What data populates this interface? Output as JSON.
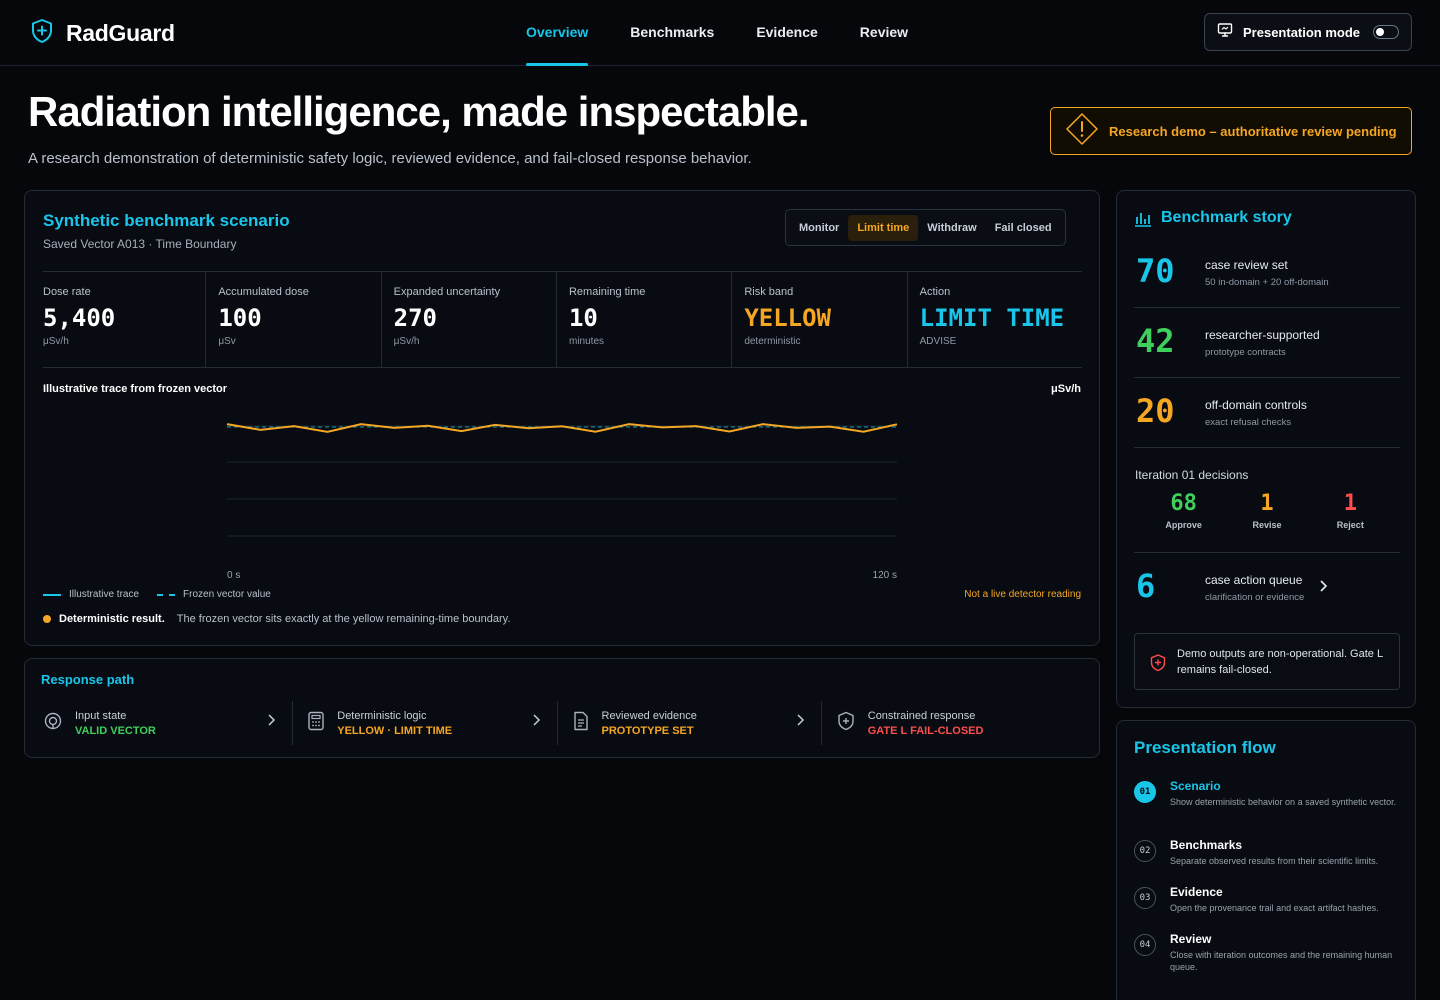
{
  "app": {
    "name": "RadGuard"
  },
  "nav": {
    "items": [
      {
        "label": "Overview",
        "active": true
      },
      {
        "label": "Benchmarks",
        "active": false
      },
      {
        "label": "Evidence",
        "active": false
      },
      {
        "label": "Review",
        "active": false
      }
    ],
    "presentation_mode": {
      "label": "Presentation mode",
      "enabled": false
    }
  },
  "hero": {
    "title": "Radiation intelligence, made inspectable.",
    "subtitle": "A research demonstration of deterministic safety logic, reviewed evidence, and fail-closed response behavior.",
    "banner": "Research demo – authoritative review pending"
  },
  "scenario": {
    "title": "Synthetic benchmark scenario",
    "subtitle": "Saved Vector A013 · Time Boundary",
    "modes": [
      {
        "label": "Monitor",
        "active": false
      },
      {
        "label": "Limit time",
        "active": true
      },
      {
        "label": "Withdraw",
        "active": false
      },
      {
        "label": "Fail closed",
        "active": false
      }
    ],
    "metrics": [
      {
        "label": "Dose rate",
        "value": "5,400",
        "unit": "μSv/h",
        "color": "#ffffff"
      },
      {
        "label": "Accumulated dose",
        "value": "100",
        "unit": "μSv",
        "color": "#ffffff"
      },
      {
        "label": "Expanded uncertainty",
        "value": "270",
        "unit": "μSv/h",
        "color": "#ffffff"
      },
      {
        "label": "Remaining time",
        "value": "10",
        "unit": "minutes",
        "color": "#ffffff"
      },
      {
        "label": "Risk band",
        "value": "YELLOW",
        "unit": "deterministic",
        "color": "#f5a623"
      },
      {
        "label": "Action",
        "value": "LIMIT TIME",
        "unit": "ADVISE",
        "color": "#19c6ea"
      }
    ],
    "trace": {
      "title": "Illustrative trace from frozen vector",
      "unit": "μSv/h",
      "x_start_label": "0 s",
      "x_end_label": "120 s",
      "legend_trace": "Illustrative trace",
      "legend_frozen": "Frozen vector value",
      "not_live": "Not a live detector reading",
      "result_label": "Deterministic result.",
      "result_text": "The frozen vector sits exactly at the yellow remaining-time boundary."
    }
  },
  "chart_data": {
    "type": "line",
    "title": "Illustrative trace from frozen vector",
    "ylabel": "μSv/h",
    "x_tick_labels": [
      "0 s",
      "120 s"
    ],
    "xlim": [
      0,
      120
    ],
    "grid": true,
    "legend_placement": "bottom-left",
    "series": [
      {
        "name": "Illustrative trace",
        "color": "#f5a623",
        "x": [
          0,
          6,
          12,
          18,
          24,
          30,
          36,
          42,
          48,
          54,
          60,
          66,
          72,
          78,
          84,
          90,
          96,
          102,
          108,
          114,
          120
        ],
        "values": [
          0.66,
          0.34,
          0.55,
          0.23,
          0.66,
          0.45,
          0.57,
          0.27,
          0.62,
          0.43,
          0.54,
          0.24,
          0.66,
          0.48,
          0.55,
          0.25,
          0.66,
          0.45,
          0.52,
          0.24,
          0.65
        ]
      },
      {
        "name": "Frozen vector value",
        "color": "#19c6ea",
        "style": "dashed",
        "x": [
          0,
          120
        ],
        "values": [
          0.5,
          0.5
        ]
      }
    ]
  },
  "response_path": {
    "title": "Response path",
    "steps": [
      {
        "label": "Input state",
        "value": "VALID VECTOR",
        "color": "#3fcf5c",
        "icon": "sensor-icon"
      },
      {
        "label": "Deterministic logic",
        "value": "YELLOW · LIMIT TIME",
        "color": "#f5a623",
        "icon": "calculator-icon"
      },
      {
        "label": "Reviewed evidence",
        "value": "PROTOTYPE SET",
        "color": "#f5a623",
        "icon": "document-icon"
      },
      {
        "label": "Constrained response",
        "value": "GATE L FAIL-CLOSED",
        "color": "#ff4d4d",
        "icon": "shield-icon"
      }
    ]
  },
  "story": {
    "title": "Benchmark story",
    "rows": [
      {
        "num": "70",
        "label": "case review set",
        "sub": "50 in-domain + 20 off-domain",
        "color": "#19c6ea"
      },
      {
        "num": "42",
        "label": "researcher-supported",
        "sub": "prototype contracts",
        "color": "#3fcf5c"
      },
      {
        "num": "20",
        "label": "off-domain controls",
        "sub": "exact refusal checks",
        "color": "#f5a623"
      }
    ],
    "iteration_title": "Iteration 01 decisions",
    "decisions": [
      {
        "num": "68",
        "label": "Approve",
        "color": "#3fcf5c"
      },
      {
        "num": "1",
        "label": "Revise",
        "color": "#f5a623"
      },
      {
        "num": "1",
        "label": "Reject",
        "color": "#ff4d4d"
      }
    ],
    "queue": {
      "num": "6",
      "label": "case action queue",
      "sub": "clarification or evidence"
    },
    "notice": "Demo outputs are non-operational. Gate L remains fail-closed."
  },
  "flow": {
    "title": "Presentation flow",
    "items": [
      {
        "num": "01",
        "name": "Scenario",
        "desc": "Show deterministic behavior on a saved synthetic vector.",
        "active": true
      },
      {
        "num": "02",
        "name": "Benchmarks",
        "desc": "Separate observed results from their scientific limits.",
        "active": false
      },
      {
        "num": "03",
        "name": "Evidence",
        "desc": "Open the provenance trail and exact artifact hashes.",
        "active": false
      },
      {
        "num": "04",
        "name": "Review",
        "desc": "Close with iteration outcomes and the remaining human queue.",
        "active": false
      }
    ]
  }
}
